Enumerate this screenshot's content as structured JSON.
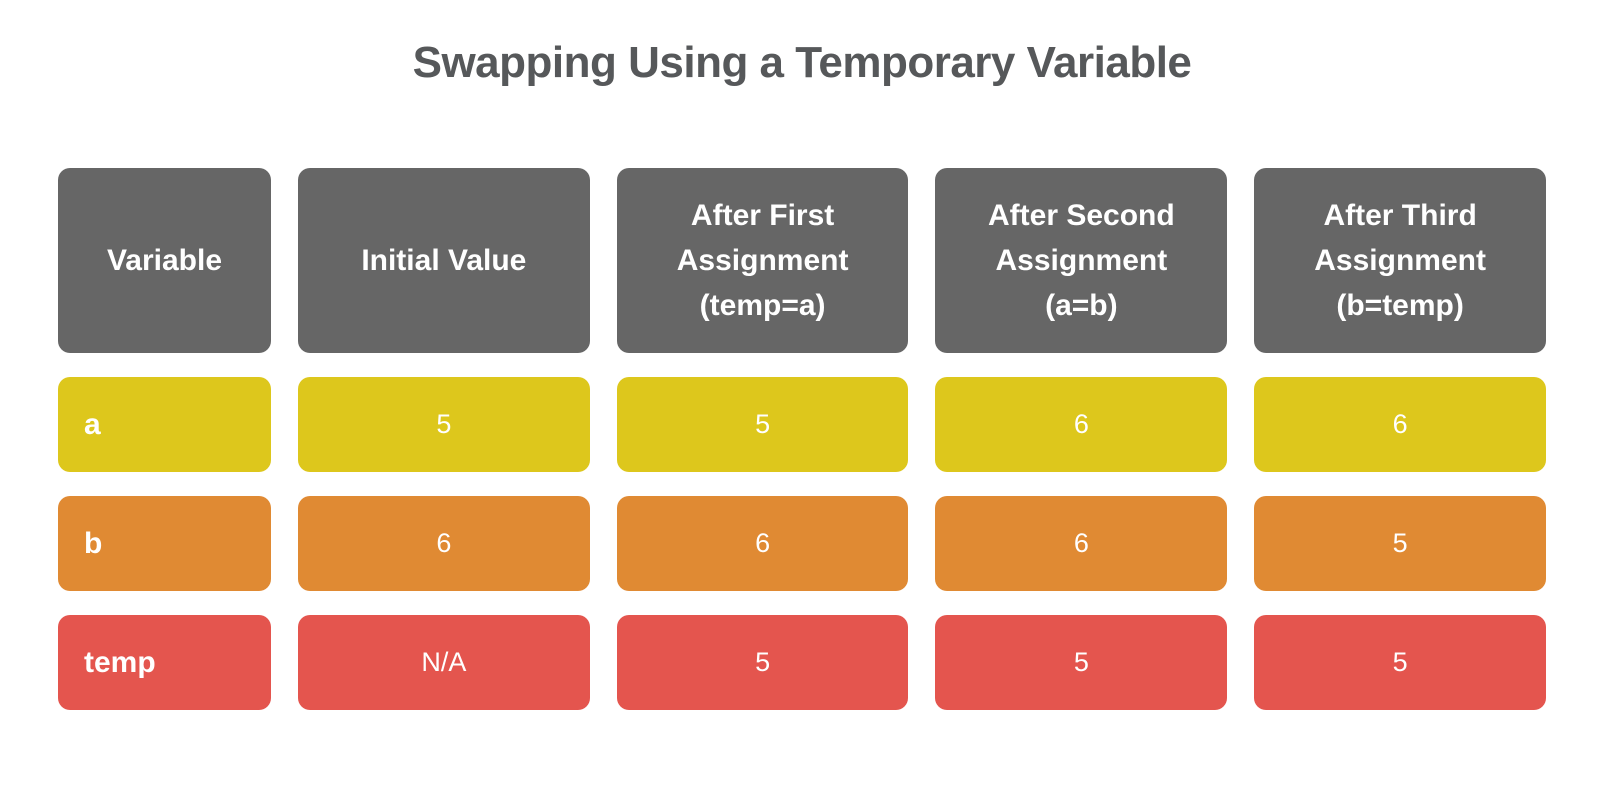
{
  "title": "Swapping Using a Temporary Variable",
  "colors": {
    "title_text": "#56585a",
    "header_bg": "#666666",
    "cell_text": "#ffffff",
    "row_a_bg": "#ddc71c",
    "row_b_bg": "#e08a33",
    "row_temp_bg": "#e4554e"
  },
  "table": {
    "columns": [
      {
        "label": "Variable"
      },
      {
        "label": "Initial Value"
      },
      {
        "label": "After First\nAssignment\n(temp=a)"
      },
      {
        "label": "After Second\nAssignment\n(a=b)"
      },
      {
        "label": "After Third\nAssignment\n(b=temp)"
      }
    ],
    "rows": [
      {
        "variable": "a",
        "color": "#ddc71c",
        "values": [
          "5",
          "5",
          "6",
          "6"
        ]
      },
      {
        "variable": "b",
        "color": "#e08a33",
        "values": [
          "6",
          "6",
          "6",
          "5"
        ]
      },
      {
        "variable": "temp",
        "color": "#e4554e",
        "values": [
          "N/A",
          "5",
          "5",
          "5"
        ]
      }
    ]
  }
}
